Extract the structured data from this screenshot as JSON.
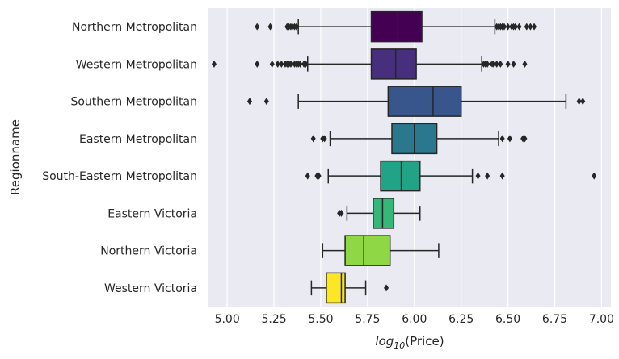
{
  "chart_data": {
    "type": "box",
    "orientation": "horizontal",
    "xlabel_main": "log",
    "xlabel_sub": "10",
    "xlabel_rest": "(Price)",
    "ylabel": "Regionname",
    "xlim": [
      4.9,
      7.05
    ],
    "xticks": [
      5.0,
      5.25,
      5.5,
      5.75,
      6.0,
      6.25,
      6.5,
      6.75,
      7.0
    ],
    "xtick_labels": [
      "5.00",
      "5.25",
      "5.50",
      "5.75",
      "6.00",
      "6.25",
      "6.50",
      "6.75",
      "7.00"
    ],
    "grid": true,
    "background": "#eaeaf2",
    "categories": [
      {
        "name": "Northern Metropolitan",
        "whislo": 5.38,
        "q1": 5.77,
        "med": 5.91,
        "q3": 6.04,
        "whishi": 6.43,
        "color": "#440154",
        "fliers": [
          5.16,
          5.23,
          5.32,
          5.33,
          5.34,
          5.35,
          5.36,
          5.37,
          6.44,
          6.45,
          6.46,
          6.47,
          6.48,
          6.5,
          6.52,
          6.53,
          6.54,
          6.56,
          6.6,
          6.62,
          6.64
        ]
      },
      {
        "name": "Western Metropolitan",
        "whislo": 5.43,
        "q1": 5.77,
        "med": 5.9,
        "q3": 6.01,
        "whishi": 6.36,
        "color": "#472f7d",
        "fliers": [
          4.93,
          5.16,
          5.24,
          5.27,
          5.29,
          5.31,
          5.32,
          5.33,
          5.34,
          5.36,
          5.37,
          5.38,
          5.39,
          5.41,
          5.42,
          6.37,
          6.38,
          6.39,
          6.41,
          6.42,
          6.44,
          6.46,
          6.5,
          6.53,
          6.59
        ]
      },
      {
        "name": "Southern Metropolitan",
        "whislo": 5.38,
        "q1": 5.86,
        "med": 6.1,
        "q3": 6.25,
        "whishi": 6.81,
        "color": "#39568c",
        "fliers": [
          5.12,
          5.21,
          6.88,
          6.9
        ]
      },
      {
        "name": "Eastern Metropolitan",
        "whislo": 5.55,
        "q1": 5.88,
        "med": 6.0,
        "q3": 6.12,
        "whishi": 6.45,
        "color": "#2a788e",
        "fliers": [
          5.46,
          5.51,
          5.52,
          6.47,
          6.51,
          6.58,
          6.59
        ]
      },
      {
        "name": "South-Eastern Metropolitan",
        "whislo": 5.54,
        "q1": 5.82,
        "med": 5.93,
        "q3": 6.03,
        "whishi": 6.31,
        "color": "#20a386",
        "fliers": [
          5.43,
          5.48,
          5.49,
          6.34,
          6.39,
          6.47,
          6.96
        ]
      },
      {
        "name": "Eastern Victoria",
        "whislo": 5.64,
        "q1": 5.78,
        "med": 5.83,
        "q3": 5.89,
        "whishi": 6.03,
        "color": "#35b779",
        "fliers": [
          5.6,
          5.61
        ]
      },
      {
        "name": "Northern Victoria",
        "whislo": 5.51,
        "q1": 5.63,
        "med": 5.73,
        "q3": 5.87,
        "whishi": 6.13,
        "color": "#8fd744",
        "fliers": []
      },
      {
        "name": "Western Victoria",
        "whislo": 5.45,
        "q1": 5.53,
        "med": 5.61,
        "q3": 5.63,
        "whishi": 5.74,
        "color": "#fde725",
        "fliers": [
          5.85
        ]
      }
    ]
  }
}
